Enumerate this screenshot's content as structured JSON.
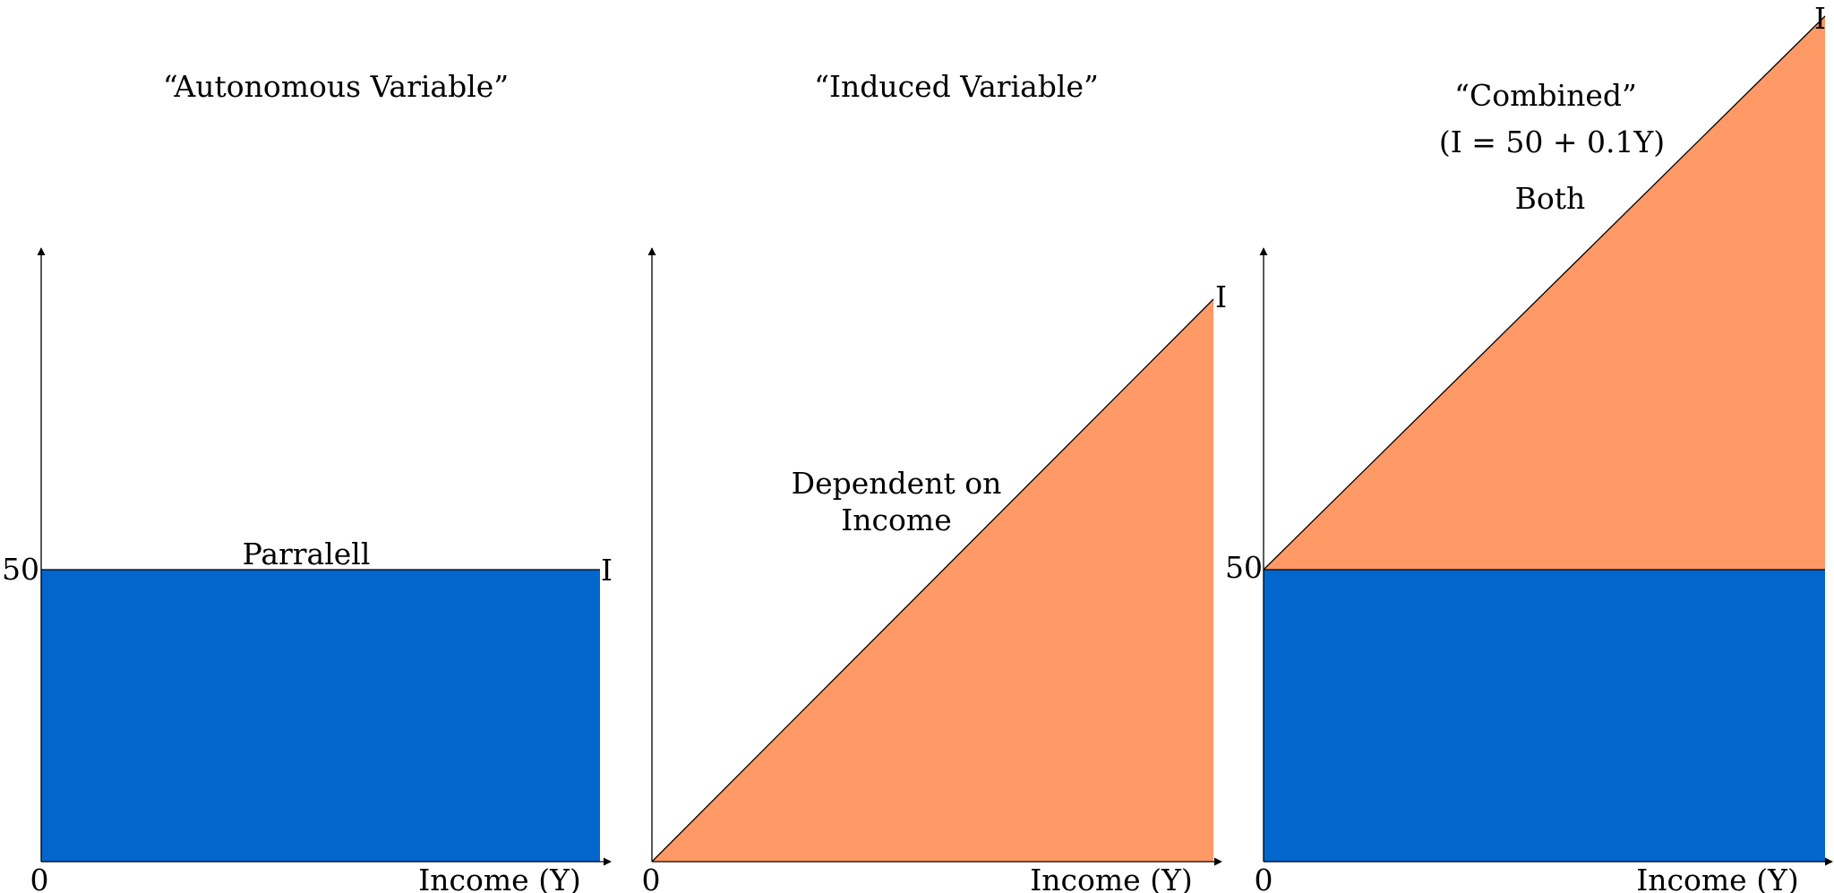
{
  "colors": {
    "autonomous_fill": "#0366CC",
    "induced_fill": "#FF9966",
    "axis": "#000000",
    "text": "#000000"
  },
  "panels": [
    {
      "title": "“Autonomous Variable”",
      "annotation": "Parralell",
      "y_tick": "50",
      "origin": "0",
      "x_axis_label": "Income (Y)",
      "line_label": "I"
    },
    {
      "title": "“Induced Variable”",
      "annotation_line1": "Dependent on",
      "annotation_line2": "Income",
      "origin": "0",
      "x_axis_label": "Income (Y)",
      "line_label": "I"
    },
    {
      "title": "“Combined”",
      "equation": "(I = 50 + 0.1Y)",
      "annotation": "Both",
      "y_tick": "50",
      "origin": "0",
      "x_axis_label": "Income (Y)",
      "line_label": "I"
    }
  ]
}
